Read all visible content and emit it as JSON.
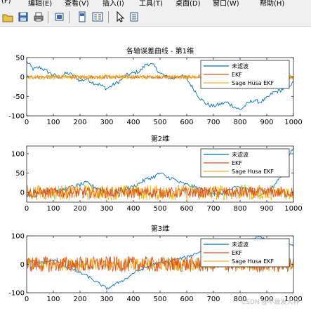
{
  "menubar": {
    "items": [
      "(F)",
      "编辑(E)",
      "查看(V)",
      "插入(I)",
      "工具(T)",
      "桌面(D)",
      "窗口(W)",
      "帮助(H)"
    ]
  },
  "toolbar": {
    "buttons": [
      "open-icon",
      "save-icon",
      "print-icon",
      "link-icon",
      "figure-toggle-icon",
      "legend-toggle-icon",
      "pointer-icon",
      "brush-icon"
    ]
  },
  "watermark": "CSDN @不敢发大神",
  "colors": {
    "raw": "#0072BD",
    "ekf": "#D95319",
    "shekf": "#EDB120"
  },
  "chart_data": [
    {
      "type": "line",
      "title": "各轴误差曲线 - 第1维",
      "xlim": [
        0,
        1000
      ],
      "ylim": [
        -100,
        50
      ],
      "xticks": [
        0,
        100,
        200,
        300,
        400,
        500,
        600,
        700,
        800,
        900,
        1000
      ],
      "yticks": [
        -100,
        -50,
        0,
        50
      ],
      "legend": {
        "placement": "top-right",
        "entries": [
          "未滤波",
          "EKF",
          "Sage Husa EKF"
        ]
      },
      "series": [
        {
          "name": "未滤波",
          "x": [
            0,
            25,
            50,
            75,
            100,
            125,
            150,
            175,
            200,
            225,
            250,
            275,
            300,
            325,
            350,
            375,
            400,
            425,
            450,
            475,
            500,
            525,
            550,
            575,
            600,
            625,
            650,
            675,
            700,
            725,
            750,
            775,
            800,
            825,
            850,
            875,
            900,
            925,
            950,
            975,
            1000
          ],
          "y": [
            40,
            20,
            25,
            15,
            5,
            0,
            10,
            5,
            -10,
            -5,
            -15,
            -20,
            -30,
            -20,
            -10,
            5,
            10,
            15,
            35,
            30,
            10,
            0,
            -5,
            5,
            -5,
            -30,
            -55,
            -70,
            -75,
            -70,
            -65,
            -75,
            -85,
            -70,
            -60,
            -65,
            -55,
            -40,
            -35,
            -25,
            -15
          ]
        },
        {
          "name": "EKF",
          "x": [
            0,
            1000
          ],
          "y": [
            0,
            0
          ]
        },
        {
          "name": "Sage Husa EKF",
          "x": [
            0,
            1000
          ],
          "y": [
            0,
            0
          ]
        }
      ]
    },
    {
      "type": "line",
      "title": "第2维",
      "xlim": [
        0,
        1000
      ],
      "ylim": [
        -25,
        120
      ],
      "xticks": [
        0,
        100,
        200,
        300,
        400,
        500,
        600,
        700,
        800,
        900,
        1000
      ],
      "yticks": [
        0,
        50,
        100
      ],
      "legend": {
        "placement": "top-right",
        "entries": [
          "未滤波",
          "EKF",
          "Sage Husa EKF"
        ]
      },
      "series": [
        {
          "name": "未滤波",
          "x": [
            0,
            25,
            50,
            75,
            100,
            125,
            150,
            175,
            200,
            225,
            250,
            275,
            300,
            325,
            350,
            375,
            400,
            425,
            450,
            475,
            500,
            525,
            550,
            575,
            600,
            625,
            650,
            675,
            700,
            725,
            750,
            775,
            800,
            825,
            850,
            875,
            900,
            925,
            950,
            975,
            1000
          ],
          "y": [
            -5,
            -10,
            0,
            5,
            0,
            5,
            10,
            15,
            20,
            25,
            15,
            10,
            0,
            -5,
            5,
            10,
            15,
            25,
            35,
            40,
            50,
            40,
            35,
            25,
            20,
            15,
            10,
            5,
            0,
            -5,
            5,
            10,
            15,
            10,
            0,
            -5,
            5,
            15,
            40,
            90,
            115
          ]
        },
        {
          "name": "EKF",
          "x": [
            0,
            1000
          ],
          "y": [
            0,
            0
          ]
        },
        {
          "name": "Sage Husa EKF",
          "x": [
            0,
            1000
          ],
          "y": [
            0,
            0
          ]
        }
      ]
    },
    {
      "type": "line",
      "title": "第3维",
      "xlim": [
        0,
        1000
      ],
      "ylim": [
        -100,
        100
      ],
      "xticks": [
        0,
        100,
        200,
        300,
        400,
        500,
        600,
        700,
        800,
        900,
        1000
      ],
      "yticks": [
        -100,
        0,
        100
      ],
      "legend": {
        "placement": "top-right",
        "entries": [
          "未滤波",
          "EKF",
          "Sage Husa EKF"
        ]
      },
      "series": [
        {
          "name": "未滤波",
          "x": [
            0,
            25,
            50,
            75,
            100,
            125,
            150,
            175,
            200,
            225,
            250,
            275,
            300,
            325,
            350,
            375,
            400,
            425,
            450,
            475,
            500,
            525,
            550,
            575,
            600,
            625,
            650,
            675,
            700,
            725,
            750,
            775,
            800,
            825,
            850,
            875,
            900,
            925,
            950,
            975,
            1000
          ],
          "y": [
            15,
            10,
            5,
            10,
            15,
            5,
            -10,
            -20,
            -30,
            -40,
            -55,
            -70,
            -85,
            -75,
            -60,
            -50,
            -30,
            -20,
            -10,
            0,
            5,
            10,
            15,
            20,
            25,
            35,
            45,
            50,
            55,
            65,
            75,
            80,
            75,
            85,
            90,
            95,
            85,
            80,
            75,
            70,
            65
          ]
        },
        {
          "name": "EKF",
          "x": [
            0,
            1000
          ],
          "y": [
            0,
            0
          ]
        },
        {
          "name": "Sage Husa EKF",
          "x": [
            0,
            1000
          ],
          "y": [
            0,
            0
          ]
        }
      ]
    }
  ]
}
